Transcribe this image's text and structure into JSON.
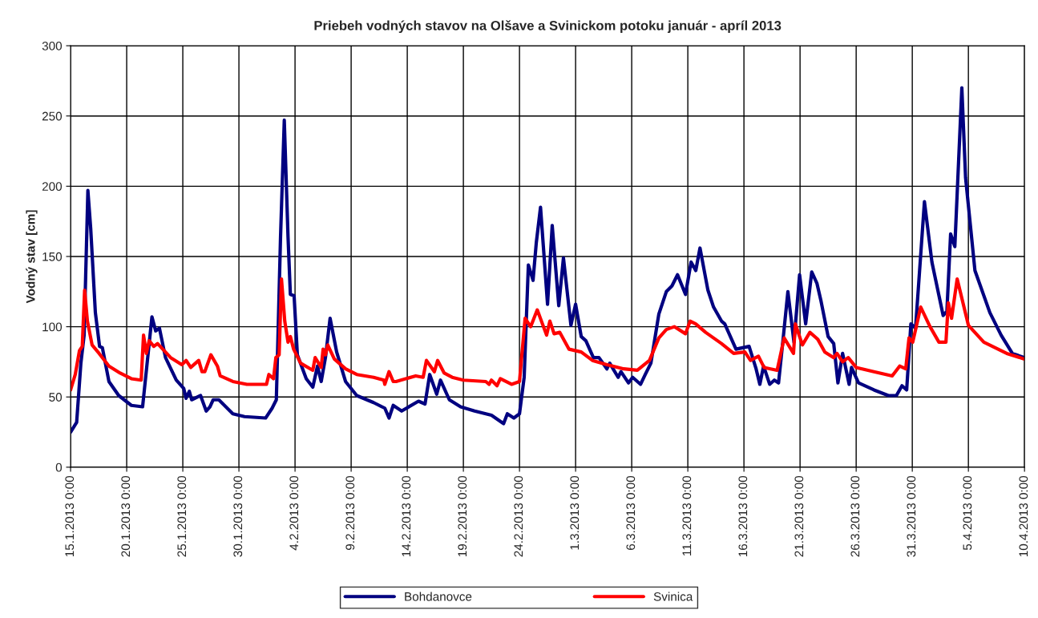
{
  "chart_data": {
    "type": "line",
    "title": "Priebeh vodných stavov na Olšave a Svinickom potoku január - apríl 2013",
    "ylabel": "Vodný stav [cm]",
    "xlim": [
      "2013-01-15",
      "2013-04-10"
    ],
    "xticks": [
      {
        "value": "2013-01-15",
        "label": "15.1.2013 0:00"
      },
      {
        "value": "2013-01-20",
        "label": "20.1.2013 0:00"
      },
      {
        "value": "2013-01-25",
        "label": "25.1.2013 0:00"
      },
      {
        "value": "2013-01-30",
        "label": "30.1.2013 0:00"
      },
      {
        "value": "2013-02-04",
        "label": "4.2.2013 0:00"
      },
      {
        "value": "2013-02-09",
        "label": "9.2.2013 0:00"
      },
      {
        "value": "2013-02-14",
        "label": "14.2.2013 0:00"
      },
      {
        "value": "2013-02-19",
        "label": "19.2.2013 0:00"
      },
      {
        "value": "2013-02-24",
        "label": "24.2.2013 0:00"
      },
      {
        "value": "2013-03-01",
        "label": "1.3.2013 0:00"
      },
      {
        "value": "2013-03-06",
        "label": "6.3.2013 0:00"
      },
      {
        "value": "2013-03-11",
        "label": "11.3.2013 0:00"
      },
      {
        "value": "2013-03-16",
        "label": "16.3.2013 0:00"
      },
      {
        "value": "2013-03-21",
        "label": "21.3.2013 0:00"
      },
      {
        "value": "2013-03-26",
        "label": "26.3.2013 0:00"
      },
      {
        "value": "2013-03-31",
        "label": "31.3.2013 0:00"
      },
      {
        "value": "2013-04-05",
        "label": "5.4.2013 0:00"
      },
      {
        "value": "2013-04-10",
        "label": "10.4.2013 0:00"
      }
    ],
    "ylim": [
      0,
      300
    ],
    "yticks": [
      0,
      50,
      100,
      150,
      200,
      250,
      300
    ],
    "grid": true,
    "legend": "bottom",
    "marker": "none",
    "line_style": "solid",
    "series": [
      {
        "name": "Bohdanovce",
        "color": "#000080",
        "x": [
          "2013-01-15T00:00",
          "2013-01-15T13:00",
          "2013-01-15T22:00",
          "2013-01-16T05:00",
          "2013-01-16T13:00",
          "2013-01-16T19:00",
          "2013-01-17T05:00",
          "2013-01-17T14:00",
          "2013-01-17T20:00",
          "2013-01-18T10:00",
          "2013-01-19T07:00",
          "2013-01-20T10:00",
          "2013-01-21T10:00",
          "2013-01-22T06:00",
          "2013-01-22T14:00",
          "2013-01-22T22:00",
          "2013-01-23T11:00",
          "2013-01-24T10:00",
          "2013-01-25T02:00",
          "2013-01-25T07:00",
          "2013-01-25T14:00",
          "2013-01-25T19:00",
          "2013-01-26T14:00",
          "2013-01-27T02:00",
          "2013-01-27T10:00",
          "2013-01-27T17:00",
          "2013-01-28T05:00",
          "2013-01-29T11:00",
          "2013-01-30T12:00",
          "2013-02-01T09:00",
          "2013-02-01T23:00",
          "2013-02-02T08:00",
          "2013-02-02T17:00",
          "2013-02-03T01:00",
          "2013-02-03T09:00",
          "2013-02-03T14:00",
          "2013-02-03T22:00",
          "2013-02-04T05:00",
          "2013-02-05T00:00",
          "2013-02-05T14:00",
          "2013-02-06T00:00",
          "2013-02-06T08:00",
          "2013-02-06T17:00",
          "2013-02-07T03:00",
          "2013-02-07T17:00",
          "2013-02-08T12:00",
          "2013-02-09T12:00",
          "2013-02-11T00:00",
          "2013-02-12T00:00",
          "2013-02-12T09:00",
          "2013-02-12T18:00",
          "2013-02-13T12:00",
          "2013-02-15T00:00",
          "2013-02-15T14:00",
          "2013-02-16T00:00",
          "2013-02-16T15:00",
          "2013-02-16T23:00",
          "2013-02-17T18:00",
          "2013-02-18T18:00",
          "2013-02-20T00:00",
          "2013-02-21T12:00",
          "2013-02-22T14:00",
          "2013-02-22T22:00",
          "2013-02-23T12:00",
          "2013-02-24T00:00",
          "2013-02-24T10:00",
          "2013-02-24T19:00",
          "2013-02-25T05:00",
          "2013-02-25T12:00",
          "2013-02-25T21:00",
          "2013-02-26T12:00",
          "2013-02-26T22:00",
          "2013-02-27T12:00",
          "2013-02-27T22:00",
          "2013-02-28T14:00",
          "2013-03-01T00:00",
          "2013-03-01T12:00",
          "2013-03-01T22:00",
          "2013-03-02T14:00",
          "2013-03-03T02:00",
          "2013-03-03T19:00",
          "2013-03-04T01:00",
          "2013-03-04T19:00",
          "2013-03-05T01:00",
          "2013-03-05T17:00",
          "2013-03-06T02:00",
          "2013-03-06T19:00",
          "2013-03-07T05:00",
          "2013-03-07T17:00",
          "2013-03-08T10:00",
          "2013-03-09T02:00",
          "2013-03-09T14:00",
          "2013-03-10T02:00",
          "2013-03-10T19:00",
          "2013-03-11T07:00",
          "2013-03-11T17:00",
          "2013-03-12T02:00",
          "2013-03-12T19:00",
          "2013-03-13T07:00",
          "2013-03-14T00:00",
          "2013-03-14T07:00",
          "2013-03-15T07:00",
          "2013-03-16T11:00",
          "2013-03-17T02:00",
          "2013-03-17T10:00",
          "2013-03-17T18:00",
          "2013-03-18T07:00",
          "2013-03-18T17:00",
          "2013-03-19T02:00",
          "2013-03-19T12:00",
          "2013-03-19T22:00",
          "2013-03-20T11:00",
          "2013-03-20T23:00",
          "2013-03-21T12:00",
          "2013-03-22T01:00",
          "2013-03-22T12:00",
          "2013-03-22T21:00",
          "2013-03-23T12:00",
          "2013-03-24T00:00",
          "2013-03-24T09:00",
          "2013-03-24T19:00",
          "2013-03-25T09:00",
          "2013-03-25T14:00",
          "2013-03-26T05:00",
          "2013-03-27T14:00",
          "2013-03-28T21:00",
          "2013-03-29T14:00",
          "2013-03-30T02:00",
          "2013-03-30T12:00",
          "2013-03-30T21:00",
          "2013-03-31T07:00",
          "2013-04-01T02:00",
          "2013-04-01T18:00",
          "2013-04-02T18:00",
          "2013-04-03T02:00",
          "2013-04-03T10:00",
          "2013-04-03T19:00",
          "2013-04-04T10:00",
          "2013-04-04T18:00",
          "2013-04-05T14:00",
          "2013-04-06T22:00",
          "2013-04-07T22:00",
          "2013-04-08T22:00",
          "2013-04-10T00:00"
        ],
        "values": [
          25,
          32,
          74,
          94,
          197,
          170,
          110,
          86,
          85,
          61,
          51,
          44,
          43,
          107,
          97,
          99,
          78,
          62,
          56,
          49,
          54,
          48,
          51,
          40,
          43,
          48,
          48,
          38,
          36,
          35,
          42,
          48,
          164,
          247,
          164,
          123,
          122,
          80,
          63,
          57,
          72,
          61,
          78,
          106,
          82,
          61,
          51,
          46,
          42,
          35,
          44,
          40,
          47,
          45,
          66,
          52,
          62,
          48,
          43,
          40,
          37,
          31,
          38,
          35,
          38,
          64,
          144,
          133,
          160,
          185,
          116,
          172,
          115,
          149,
          101,
          116,
          93,
          90,
          78,
          78,
          70,
          74,
          64,
          68,
          60,
          64,
          59,
          66,
          74,
          109,
          125,
          129,
          137,
          123,
          146,
          140,
          156,
          126,
          114,
          104,
          102,
          84,
          86,
          70,
          59,
          72,
          59,
          62,
          60,
          92,
          125,
          89,
          137,
          102,
          139,
          131,
          118,
          93,
          88,
          60,
          81,
          59,
          71,
          60,
          55,
          51,
          51,
          58,
          55,
          102,
          99,
          189,
          146,
          108,
          111,
          166,
          157,
          270,
          206,
          140,
          110,
          94,
          81,
          78
        ]
      },
      {
        "name": "Svinica",
        "color": "#ff0000",
        "x": [
          "2013-01-15T00:00",
          "2013-01-15T10:00",
          "2013-01-15T19:00",
          "2013-01-16T01:00",
          "2013-01-16T06:00",
          "2013-01-16T12:00",
          "2013-01-16T22:00",
          "2013-01-17T13:00",
          "2013-01-18T10:00",
          "2013-01-19T10:00",
          "2013-01-20T10:00",
          "2013-01-21T07:00",
          "2013-01-21T12:00",
          "2013-01-21T18:00",
          "2013-01-22T00:00",
          "2013-01-22T10:00",
          "2013-01-22T18:00",
          "2013-01-23T22:00",
          "2013-01-24T22:00",
          "2013-01-25T07:00",
          "2013-01-25T17:00",
          "2013-01-26T10:00",
          "2013-01-26T17:00",
          "2013-01-26T23:00",
          "2013-01-27T12:00",
          "2013-01-28T02:00",
          "2013-01-28T08:00",
          "2013-01-29T11:00",
          "2013-01-30T17:00",
          "2013-02-01T11:00",
          "2013-02-01T16:00",
          "2013-02-02T02:00",
          "2013-02-02T07:00",
          "2013-02-02T14:00",
          "2013-02-02T19:00",
          "2013-02-03T02:00",
          "2013-02-03T09:00",
          "2013-02-03T14:00",
          "2013-02-03T21:00",
          "2013-02-04T12:00",
          "2013-02-05T14:00",
          "2013-02-05T19:00",
          "2013-02-06T08:00",
          "2013-02-06T12:00",
          "2013-02-06T17:00",
          "2013-02-06T22:00",
          "2013-02-07T12:00",
          "2013-02-08T12:00",
          "2013-02-09T12:00",
          "2013-02-11T00:00",
          "2013-02-11T22:00",
          "2013-02-12T00:00",
          "2013-02-12T09:00",
          "2013-02-12T18:00",
          "2013-02-13T00:00",
          "2013-02-14T18:00",
          "2013-02-15T10:00",
          "2013-02-15T17:00",
          "2013-02-16T10:00",
          "2013-02-16T17:00",
          "2013-02-17T07:00",
          "2013-02-18T00:00",
          "2013-02-19T00:00",
          "2013-02-21T00:00",
          "2013-02-21T07:00",
          "2013-02-21T12:00",
          "2013-02-22T00:00",
          "2013-02-22T07:00",
          "2013-02-23T07:00",
          "2013-02-24T00:00",
          "2013-02-24T12:00",
          "2013-02-25T00:00",
          "2013-02-25T14:00",
          "2013-02-26T10:00",
          "2013-02-26T17:00",
          "2013-02-27T02:00",
          "2013-02-27T14:00",
          "2013-02-28T10:00",
          "2013-03-01T12:00",
          "2013-03-02T12:00",
          "2013-03-03T19:00",
          "2013-03-05T07:00",
          "2013-03-06T12:00",
          "2013-03-07T14:00",
          "2013-03-08T10:00",
          "2013-03-09T02:00",
          "2013-03-09T19:00",
          "2013-03-10T19:00",
          "2013-03-11T05:00",
          "2013-03-11T17:00",
          "2013-03-12T14:00",
          "2013-03-14T00:00",
          "2013-03-15T02:00",
          "2013-03-16T02:00",
          "2013-03-16T14:00",
          "2013-03-17T07:00",
          "2013-03-17T19:00",
          "2013-03-18T23:00",
          "2013-03-19T14:00",
          "2013-03-20T10:00",
          "2013-03-20T14:00",
          "2013-03-21T05:00",
          "2013-03-21T21:00",
          "2013-03-22T14:00",
          "2013-03-23T05:00",
          "2013-03-24T00:00",
          "2013-03-24T07:00",
          "2013-03-24T19:00",
          "2013-03-25T07:00",
          "2013-03-26T00:00",
          "2013-03-27T14:00",
          "2013-03-29T05:00",
          "2013-03-29T21:00",
          "2013-03-30T10:00",
          "2013-03-30T17:00",
          "2013-03-31T01:00",
          "2013-03-31T18:00",
          "2013-04-01T14:00",
          "2013-04-02T09:00",
          "2013-04-03T00:00",
          "2013-04-03T05:00",
          "2013-04-03T12:00",
          "2013-04-04T00:00",
          "2013-04-05T00:00",
          "2013-04-06T09:00",
          "2013-04-08T10:00",
          "2013-04-10T00:00"
        ],
        "values": [
          55,
          66,
          83,
          86,
          126,
          104,
          87,
          81,
          72,
          67,
          63,
          62,
          94,
          81,
          90,
          86,
          88,
          78,
          73,
          76,
          71,
          76,
          68,
          68,
          80,
          72,
          65,
          61,
          59,
          59,
          66,
          63,
          78,
          80,
          134,
          104,
          89,
          93,
          84,
          74,
          69,
          78,
          71,
          84,
          80,
          87,
          77,
          70,
          66,
          64,
          62,
          59,
          68,
          61,
          61,
          65,
          64,
          76,
          68,
          76,
          67,
          64,
          62,
          61,
          59,
          62,
          58,
          63,
          59,
          61,
          106,
          100,
          112,
          94,
          104,
          95,
          96,
          84,
          82,
          76,
          73,
          70,
          69,
          76,
          92,
          98,
          100,
          95,
          104,
          102,
          96,
          88,
          81,
          82,
          76,
          79,
          71,
          69,
          92,
          81,
          102,
          87,
          96,
          91,
          82,
          78,
          81,
          75,
          78,
          71,
          68,
          65,
          72,
          70,
          92,
          89,
          114,
          100,
          89,
          89,
          117,
          106,
          134,
          101,
          89,
          81,
          77
        ]
      }
    ]
  }
}
